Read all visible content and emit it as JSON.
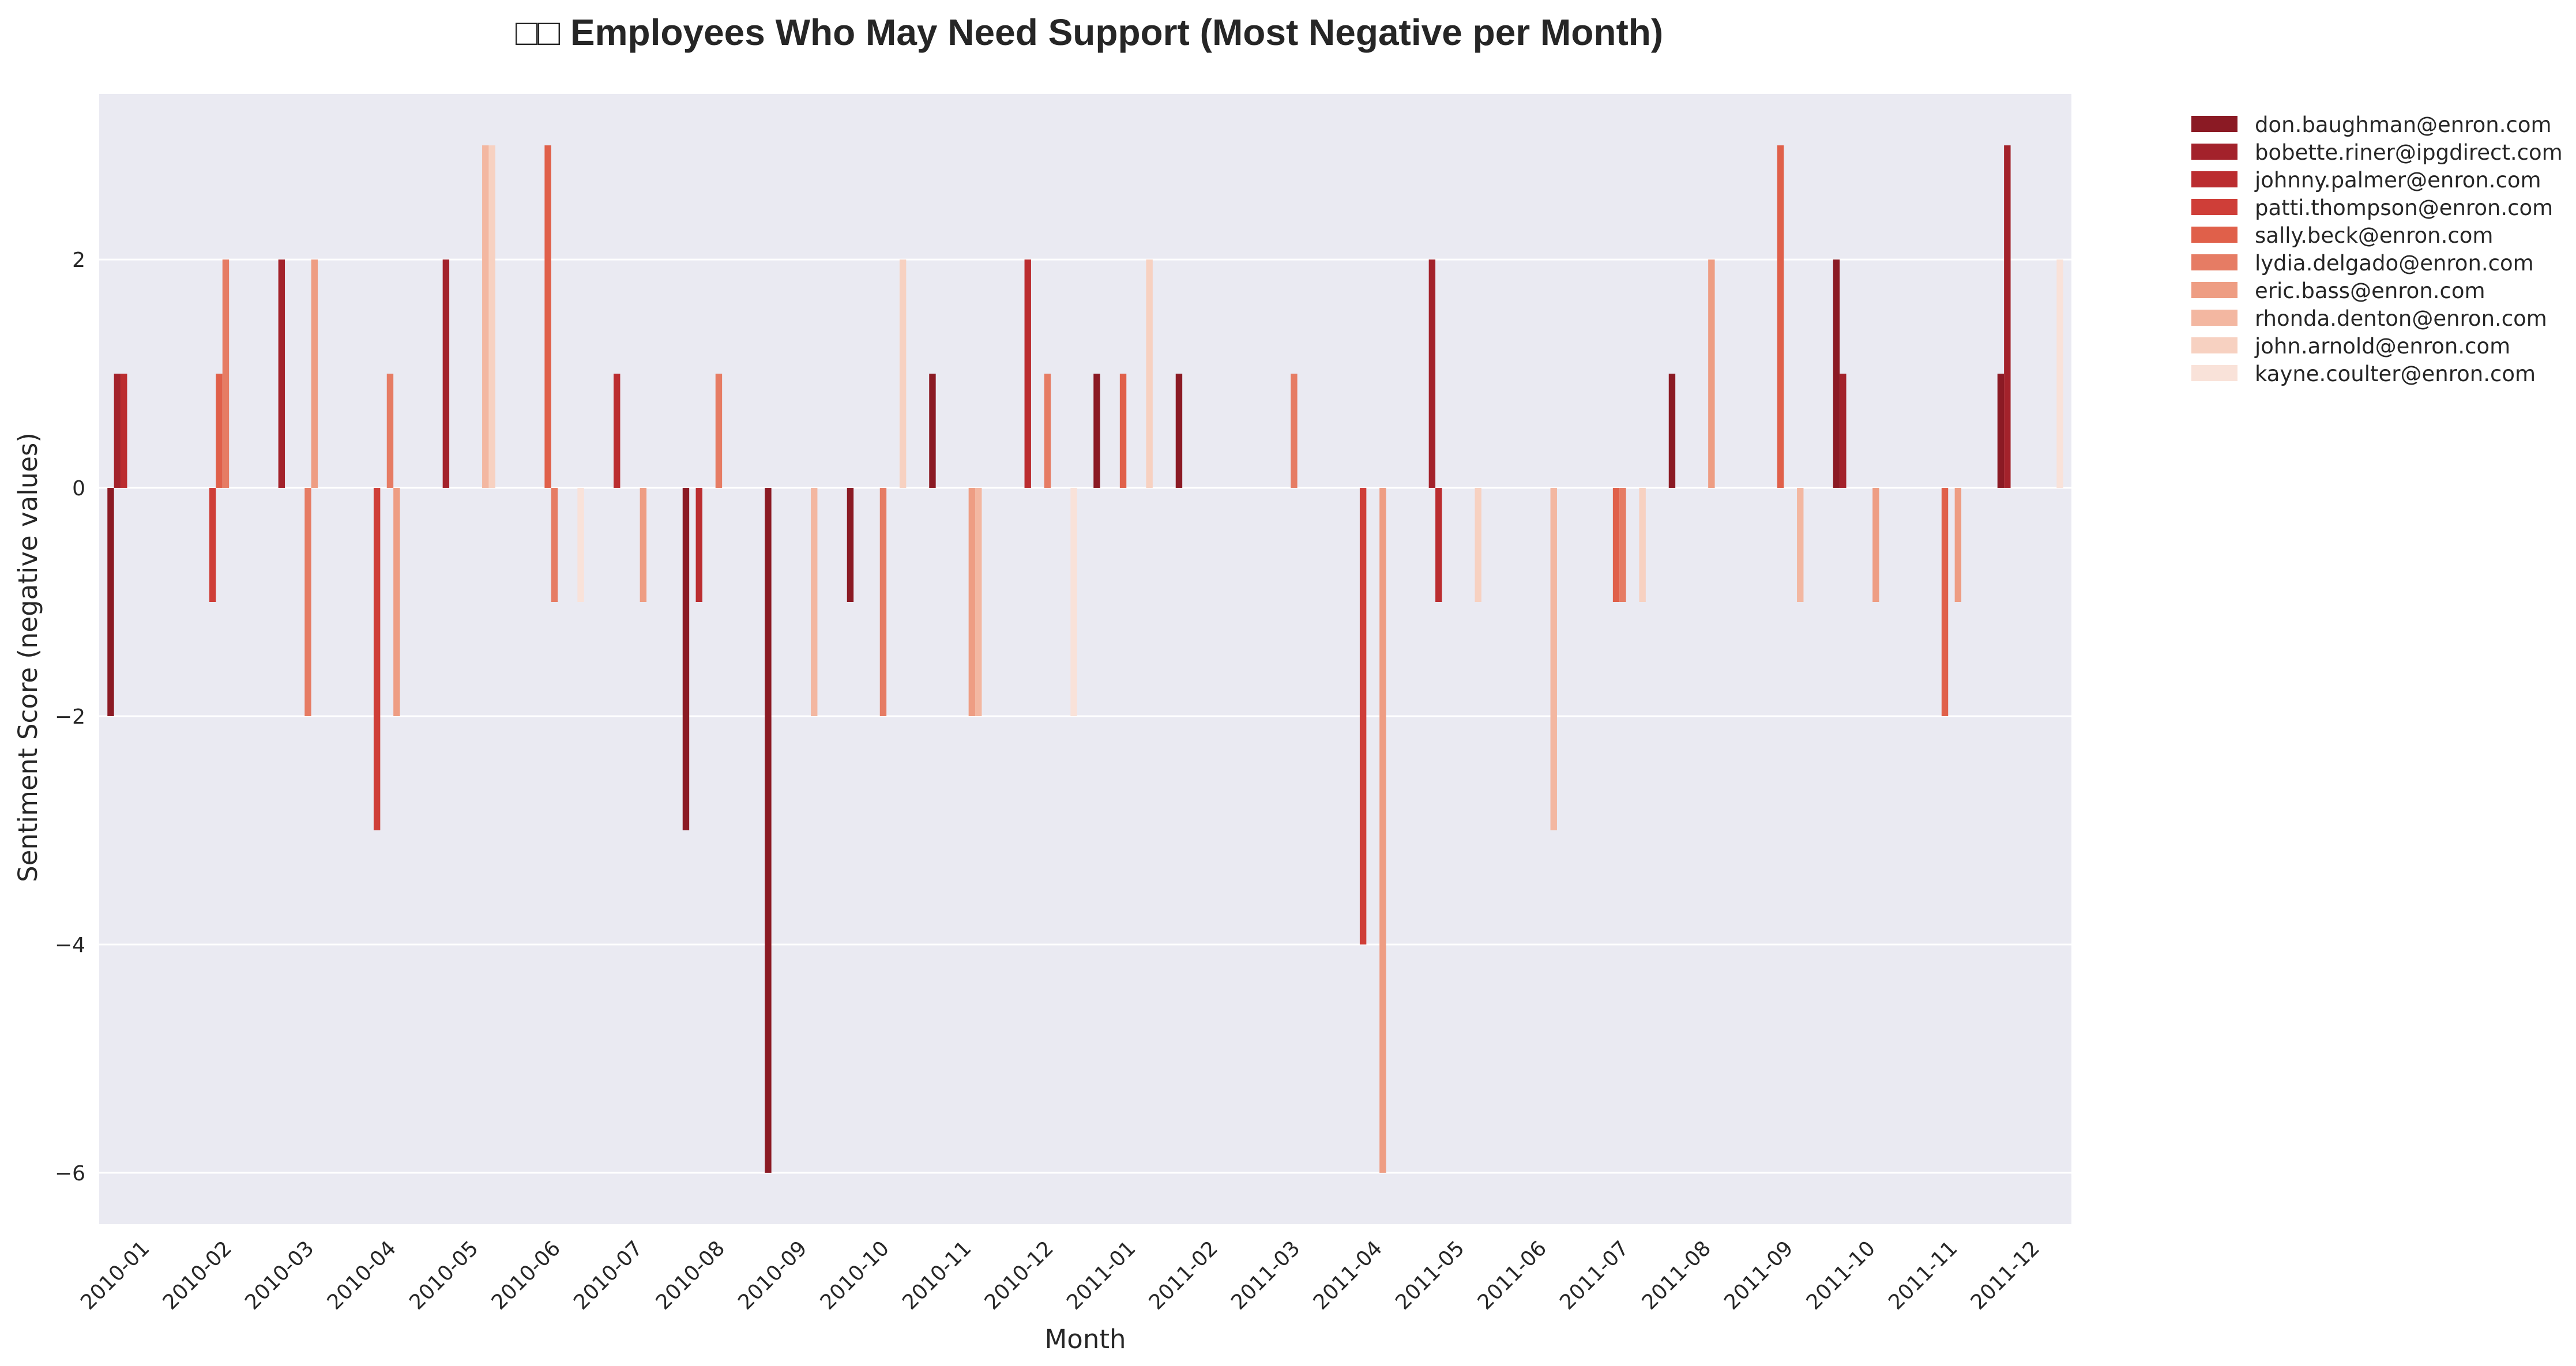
{
  "chart_data": {
    "type": "bar",
    "title": "□□ Employees Who May Need Support (Most Negative per Month)",
    "xlabel": "Month",
    "ylabel": "Sentiment Score (negative values)",
    "ylim": [
      -6.45,
      3.45
    ],
    "yticks": [
      -6,
      -4,
      -2,
      0,
      2
    ],
    "ytick_labels": [
      "−6",
      "−4",
      "−2",
      "0",
      "2"
    ],
    "grid": true,
    "legend_position": "outside-top-right",
    "categories": [
      "2010-01",
      "2010-02",
      "2010-03",
      "2010-04",
      "2010-05",
      "2010-06",
      "2010-07",
      "2010-08",
      "2010-09",
      "2010-10",
      "2010-11",
      "2010-12",
      "2011-01",
      "2011-02",
      "2011-03",
      "2011-04",
      "2011-05",
      "2011-06",
      "2011-07",
      "2011-08",
      "2011-09",
      "2011-10",
      "2011-11",
      "2011-12"
    ],
    "series": [
      {
        "name": "don.baughman@enron.com",
        "color": "#8b1a24",
        "values": [
          -2,
          null,
          null,
          null,
          null,
          null,
          null,
          -3,
          -6,
          -1,
          1,
          null,
          1,
          1,
          null,
          null,
          null,
          null,
          null,
          1,
          null,
          2,
          null,
          1
        ]
      },
      {
        "name": "bobette.riner@ipgdirect.com",
        "color": "#a3222b",
        "values": [
          1,
          null,
          2,
          null,
          2,
          null,
          null,
          null,
          null,
          null,
          null,
          null,
          null,
          null,
          null,
          null,
          2,
          null,
          null,
          null,
          null,
          1,
          null,
          3
        ]
      },
      {
        "name": "johnny.palmer@enron.com",
        "color": "#bb2d30",
        "values": [
          1,
          null,
          null,
          null,
          null,
          null,
          1,
          -1,
          null,
          null,
          null,
          2,
          null,
          null,
          null,
          null,
          -1,
          null,
          null,
          null,
          null,
          null,
          null,
          null
        ]
      },
      {
        "name": "patti.thompson@enron.com",
        "color": "#cf3e38",
        "values": [
          null,
          -1,
          null,
          -3,
          null,
          null,
          null,
          null,
          null,
          null,
          null,
          null,
          null,
          null,
          null,
          -4,
          null,
          null,
          null,
          null,
          null,
          null,
          null,
          null
        ]
      },
      {
        "name": "sally.beck@enron.com",
        "color": "#e0604a",
        "values": [
          null,
          1,
          null,
          null,
          null,
          3,
          null,
          null,
          null,
          null,
          null,
          null,
          1,
          null,
          null,
          null,
          null,
          null,
          -1,
          null,
          3,
          null,
          -2,
          null
        ]
      },
      {
        "name": "lydia.delgado@enron.com",
        "color": "#e67c64",
        "values": [
          null,
          2,
          -2,
          1,
          null,
          -1,
          null,
          1,
          null,
          -2,
          null,
          1,
          null,
          null,
          1,
          null,
          null,
          null,
          -1,
          null,
          null,
          null,
          null,
          null
        ]
      },
      {
        "name": "eric.bass@enron.com",
        "color": "#ee9d83",
        "values": [
          null,
          null,
          2,
          -2,
          null,
          null,
          -1,
          null,
          null,
          null,
          -2,
          null,
          null,
          null,
          null,
          -6,
          null,
          null,
          null,
          2,
          null,
          -1,
          -1,
          null
        ]
      },
      {
        "name": "rhonda.denton@enron.com",
        "color": "#f3b7a1",
        "values": [
          null,
          null,
          null,
          null,
          3,
          null,
          null,
          null,
          -2,
          null,
          -2,
          null,
          null,
          null,
          null,
          null,
          null,
          -3,
          null,
          null,
          -1,
          null,
          null,
          null
        ]
      },
      {
        "name": "john.arnold@enron.com",
        "color": "#f7d1c1",
        "values": [
          null,
          null,
          null,
          null,
          3,
          null,
          null,
          null,
          null,
          2,
          null,
          null,
          2,
          null,
          null,
          null,
          -1,
          null,
          -1,
          null,
          null,
          null,
          null,
          null
        ]
      },
      {
        "name": "kayne.coulter@enron.com",
        "color": "#f9e2d9",
        "values": [
          null,
          null,
          null,
          null,
          null,
          -1,
          null,
          null,
          null,
          null,
          null,
          -2,
          null,
          null,
          null,
          null,
          null,
          null,
          null,
          null,
          null,
          null,
          null,
          2
        ]
      }
    ]
  }
}
